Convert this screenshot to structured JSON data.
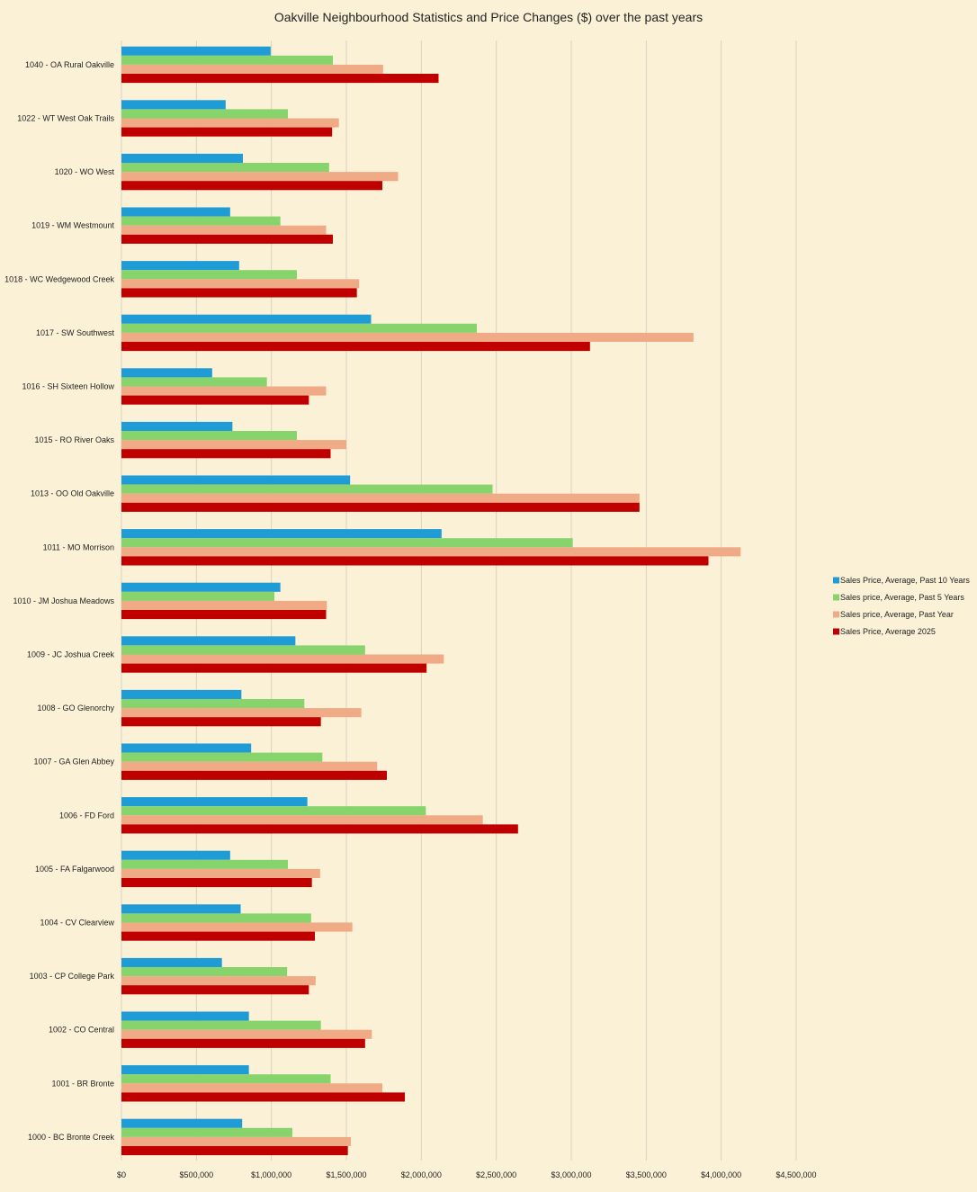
{
  "chart_data": {
    "type": "bar",
    "orientation": "horizontal",
    "title": "Oakville Neighbourhood Statistics and  Price Changes ($) over the past years",
    "xlabel": "",
    "ylabel": "",
    "xlim": [
      0,
      4500000
    ],
    "x_ticks": [
      0,
      500000,
      1000000,
      1500000,
      2000000,
      2500000,
      3000000,
      3500000,
      4000000,
      4500000
    ],
    "x_tick_labels": [
      "$0",
      "$500,000",
      "$1,000,000",
      "$1,500,000",
      "$2,000,000",
      "$2,500,000",
      "$3,000,000",
      "$3,500,000",
      "$4,000,000",
      "$4,500,000"
    ],
    "grid": "vertical",
    "legend_position": "right",
    "categories": [
      "1040 - OA Rural Oakville",
      "1022 - WT West Oak Trails",
      "1020 - WO West",
      "1019 - WM Westmount",
      "1018 - WC Wedgewood Creek",
      "1017 - SW Southwest",
      "1016 - SH Sixteen Hollow",
      "1015 - RO River Oaks",
      "1013 - OO Old Oakville",
      "1011 - MO Morrison",
      "1010 - JM Joshua Meadows",
      "1009 - JC Joshua Creek",
      "1008 - GO Glenorchy",
      "1007 - GA Glen Abbey",
      "1006 - FD Ford",
      "1005 - FA Falgarwood",
      "1004 - CV Clearview",
      "1003 - CP College Park",
      "1002 - CO Central",
      "1001 - BR Bronte",
      "1000 - BC Bronte Creek"
    ],
    "series": [
      {
        "name": "Sales Price, Average, Past 10 Years",
        "color": "#1f9bd6",
        "values": [
          995000,
          695000,
          810000,
          725000,
          785000,
          1665000,
          605000,
          740000,
          1525000,
          2135000,
          1060000,
          1160000,
          800000,
          865000,
          1240000,
          725000,
          795000,
          670000,
          850000,
          850000,
          805000
        ]
      },
      {
        "name": "Sales price, Average, Past 5 Years",
        "color": "#86d46b",
        "values": [
          1410000,
          1110000,
          1385000,
          1060000,
          1170000,
          2370000,
          970000,
          1170000,
          2475000,
          3010000,
          1020000,
          1625000,
          1220000,
          1340000,
          2030000,
          1110000,
          1265000,
          1105000,
          1330000,
          1395000,
          1140000
        ]
      },
      {
        "name": "Sales price, Average, Past Year",
        "color": "#f0aa86",
        "values": [
          1745000,
          1450000,
          1845000,
          1365000,
          1585000,
          3815000,
          1365000,
          1500000,
          3455000,
          4130000,
          1370000,
          2150000,
          1600000,
          1705000,
          2410000,
          1325000,
          1540000,
          1295000,
          1670000,
          1740000,
          1530000
        ]
      },
      {
        "name": "Sales Price, Average 2025",
        "color": "#c00000",
        "values": [
          2115000,
          1405000,
          1740000,
          1410000,
          1570000,
          3125000,
          1250000,
          1395000,
          3455000,
          3915000,
          1365000,
          2035000,
          1330000,
          1770000,
          2645000,
          1270000,
          1290000,
          1250000,
          1625000,
          1890000,
          1510000
        ]
      }
    ]
  }
}
